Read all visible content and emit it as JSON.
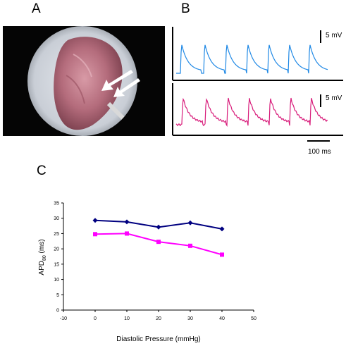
{
  "panels": {
    "a_label": "A",
    "b_label": "B",
    "c_label": "C"
  },
  "traces": {
    "top_scale": "5 mV",
    "bottom_scale": "5 mV",
    "time_scale": "100 ms",
    "top_color": "#1e88e5",
    "bottom_color": "#d81b7a"
  },
  "chart_data": {
    "type": "line",
    "xlabel": "Diastolic Pressure (mmHg)",
    "ylabel_main": "APD",
    "ylabel_sub": "80",
    "ylabel_unit": " (ms)",
    "xlim": [
      -10,
      50
    ],
    "ylim": [
      0,
      35
    ],
    "xticks": [
      -10,
      0,
      10,
      20,
      30,
      40,
      50
    ],
    "yticks": [
      0,
      5,
      10,
      15,
      20,
      25,
      30,
      35
    ],
    "x": [
      0,
      10,
      20,
      30,
      40
    ],
    "series": [
      {
        "values": [
          29.3,
          28.8,
          27.1,
          28.5,
          26.5
        ],
        "color": "#000080",
        "marker": "diamond"
      },
      {
        "values": [
          24.8,
          25.0,
          22.3,
          21.0,
          18.1
        ],
        "color": "#ff00ff",
        "marker": "square"
      }
    ]
  }
}
